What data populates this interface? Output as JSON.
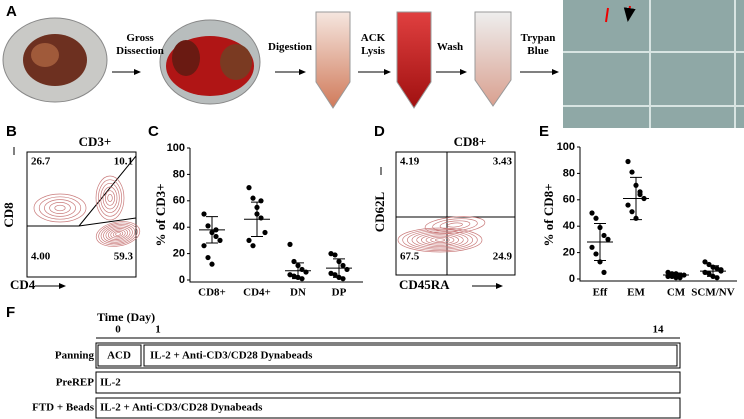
{
  "panel_labels": [
    "A",
    "B",
    "C",
    "D",
    "E",
    "F"
  ],
  "panel_a": {
    "steps": [
      "Gross Dissection",
      "Digestion",
      "ACK Lysis",
      "Wash",
      "Trypan Blue"
    ]
  },
  "panel_b": {
    "title": "CD3+",
    "y_label": "CD8",
    "x_label": "CD4",
    "quadrants": {
      "top_left": "26.7",
      "top_right": "10.1",
      "bottom_left": "4.00",
      "bottom_right": "59.3"
    }
  },
  "panel_d": {
    "title": "CD8+",
    "y_label": "CD62L",
    "x_label": "CD45RA",
    "quadrants": {
      "top_left": "4.19",
      "top_right": "3.43",
      "bottom_left": "67.5",
      "bottom_right": "24.9"
    }
  },
  "chart_data": [
    {
      "type": "dotplot",
      "ylabel": "% of CD3+",
      "ylim": [
        0,
        100
      ],
      "yticks": [
        0,
        20,
        40,
        60,
        80,
        100
      ],
      "color": "#000000",
      "categories": [
        "CD8+",
        "CD4+",
        "DN",
        "DP"
      ],
      "points": [
        [
          50,
          41,
          36,
          33,
          30,
          26,
          17,
          12,
          38
        ],
        [
          70,
          62,
          55,
          47,
          36,
          30,
          26,
          50,
          60
        ],
        [
          27,
          14,
          11,
          8,
          6,
          4,
          3,
          2,
          1
        ],
        [
          20,
          19,
          14,
          11,
          8,
          5,
          4,
          2,
          1
        ]
      ],
      "means": [
        38,
        46,
        7,
        9
      ],
      "errors": [
        10,
        13,
        6,
        7
      ]
    },
    {
      "type": "dotplot",
      "ylabel": "% of CD8+",
      "ylim": [
        0,
        100
      ],
      "yticks": [
        0,
        20,
        40,
        60,
        80,
        100
      ],
      "color": "#000000",
      "categories": [
        "Eff",
        "EM",
        "CM",
        "SCM/NV"
      ],
      "points": [
        [
          50,
          46,
          39,
          33,
          30,
          24,
          19,
          13,
          5
        ],
        [
          89,
          81,
          71,
          64,
          61,
          56,
          51,
          46,
          66
        ],
        [
          5,
          4,
          4,
          3,
          3,
          2,
          2,
          1,
          1
        ],
        [
          13,
          11,
          9,
          8,
          6,
          5,
          4,
          2,
          1,
          7
        ]
      ],
      "means": [
        28,
        61,
        3,
        6
      ],
      "errors": [
        14,
        16,
        1.5,
        4
      ]
    }
  ],
  "panel_f": {
    "axis_title": "Time (Day)",
    "ticks": [
      "0",
      "1",
      "14"
    ],
    "rows": [
      {
        "label": "Panning",
        "segments": [
          "ACD",
          "IL-2 + Anti-CD3/CD28 Dynabeads"
        ]
      },
      {
        "label": "PreREP",
        "segments": [
          "IL-2"
        ]
      },
      {
        "label": "FTD + Beads",
        "segments": [
          "IL-2 + Anti-CD3/CD28 Dynabeads"
        ]
      }
    ]
  }
}
